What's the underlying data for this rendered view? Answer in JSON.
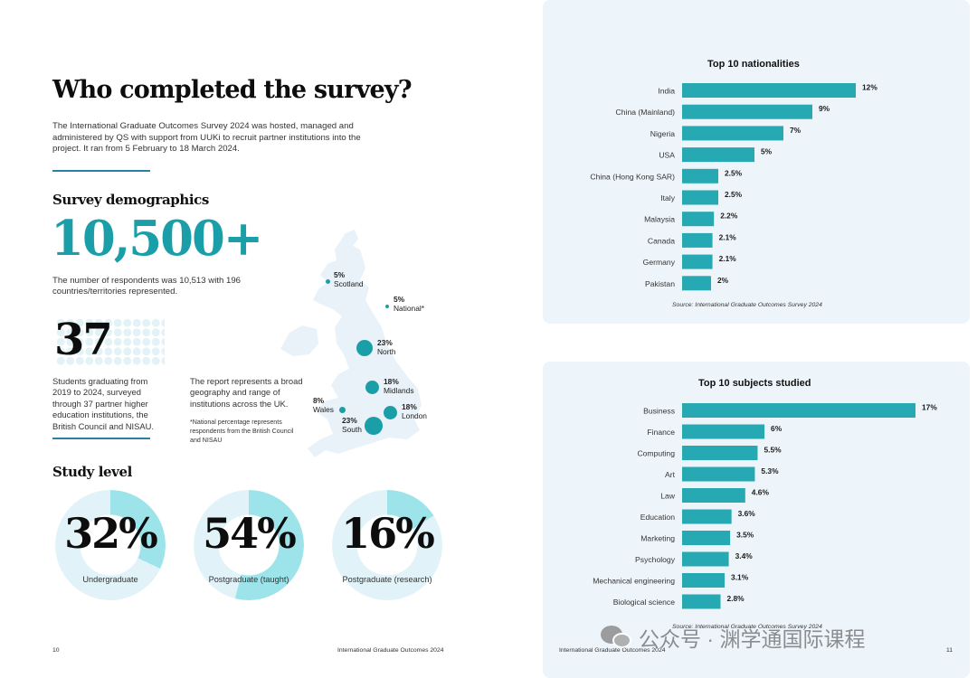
{
  "left_page": {
    "title": "Who completed the survey?",
    "intro": "The International Graduate Outcomes Survey 2024 was hosted, managed and administered by QS with support from UUKi to recruit partner institutions into the project. It ran from 5 February to 18 March 2024.",
    "demographics_heading": "Survey demographics",
    "respondents_big": "10,500+",
    "respondents_text": "The number of respondents was 10,513 with 196 countries/territories represented.",
    "institutions_big": "37",
    "graduating_text": "Students graduating from 2019 to 2024, surveyed through 37 partner higher education institutions, the British Council and NISAU.",
    "report_text": "The report represents a broad geography and range of institutions across the UK.",
    "national_note": "*National percentage represents respondents from the British Council and NISAU",
    "regions": [
      {
        "pct": "5%",
        "name": "Scotland"
      },
      {
        "pct": "5%",
        "name": "National*"
      },
      {
        "pct": "23%",
        "name": "North"
      },
      {
        "pct": "18%",
        "name": "Midlands"
      },
      {
        "pct": "8%",
        "name": "Wales"
      },
      {
        "pct": "18%",
        "name": "London"
      },
      {
        "pct": "23%",
        "name": "South"
      }
    ],
    "study_level_heading": "Study level",
    "study_levels": [
      {
        "pct_label": "32%",
        "name": "Undergraduate",
        "value": 32
      },
      {
        "pct_label": "54%",
        "name": "Postgraduate (taught)",
        "value": 54
      },
      {
        "pct_label": "16%",
        "name": "Postgraduate (research)",
        "value": 16
      }
    ],
    "footer_page": "10",
    "footer_title": "International Graduate Outcomes 2024"
  },
  "right_page": {
    "footer_title": "International Graduate Outcomes 2024",
    "footer_page": "11"
  },
  "colors": {
    "teal": "#1a9fa8",
    "bar": "#26a9b2",
    "donut_light": "#e1f2f8",
    "donut_accent": "#9ce4ea",
    "panel": "#eef5fa",
    "rule": "#2a7fa5"
  },
  "watermark": {
    "icon": "wechat-icon",
    "text": "公众号 · 渊学通国际课程"
  },
  "chart_data": [
    {
      "type": "bar",
      "orientation": "horizontal",
      "title": "Top 10 nationalities",
      "categories": [
        "India",
        "China (Mainland)",
        "Nigeria",
        "USA",
        "China (Hong Kong SAR)",
        "Italy",
        "Malaysia",
        "Canada",
        "Germany",
        "Pakistan"
      ],
      "values": [
        12,
        9,
        7,
        5,
        2.5,
        2.5,
        2.2,
        2.1,
        2.1,
        2
      ],
      "value_labels": [
        "12%",
        "9%",
        "7%",
        "5%",
        "2.5%",
        "2.5%",
        "2.2%",
        "2.1%",
        "2.1%",
        "2%"
      ],
      "source": "Source: International Graduate Outcomes Survey 2024",
      "grid": false
    },
    {
      "type": "bar",
      "orientation": "horizontal",
      "title": "Top 10 subjects studied",
      "categories": [
        "Business",
        "Finance",
        "Computing",
        "Art",
        "Law",
        "Education",
        "Marketing",
        "Psychology",
        "Mechanical engineering",
        "Biological science"
      ],
      "values": [
        17,
        6,
        5.5,
        5.3,
        4.6,
        3.6,
        3.5,
        3.4,
        3.1,
        2.8
      ],
      "value_labels": [
        "17%",
        "6%",
        "5.5%",
        "5.3%",
        "4.6%",
        "3.6%",
        "3.5%",
        "3.4%",
        "3.1%",
        "2.8%"
      ],
      "source": "Source: International Graduate Outcomes Survey 2024",
      "grid": false
    }
  ]
}
